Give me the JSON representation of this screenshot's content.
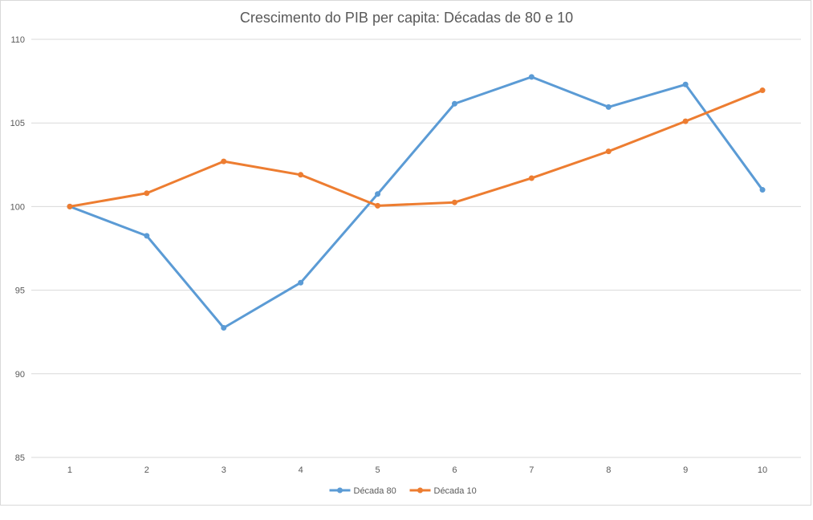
{
  "chart_data": {
    "type": "line",
    "title": "Crescimento do PIB per capita: Décadas de 80 e 10",
    "xlabel": "",
    "ylabel": "",
    "categories": [
      "1",
      "2",
      "3",
      "4",
      "5",
      "6",
      "7",
      "8",
      "9",
      "10"
    ],
    "ylim": [
      85,
      110
    ],
    "yticks": [
      "85",
      "90",
      "95",
      "100",
      "105",
      "110"
    ],
    "grid": true,
    "legend_position": "bottom",
    "series": [
      {
        "name": "Década 80",
        "color": "#5b9bd5",
        "values": [
          100,
          98.25,
          92.75,
          95.45,
          100.75,
          106.15,
          107.75,
          105.95,
          107.3,
          101.0
        ]
      },
      {
        "name": "Década 10",
        "color": "#ed7d31",
        "values": [
          100,
          100.8,
          102.7,
          101.9,
          100.05,
          100.25,
          101.7,
          103.3,
          105.1,
          106.95
        ]
      }
    ]
  }
}
